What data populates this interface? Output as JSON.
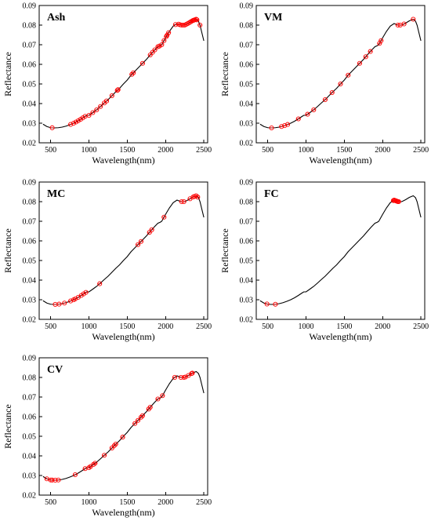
{
  "colors": {
    "curve": "#000000",
    "marker": "#ff0000",
    "marker_fc": "#ff0000"
  },
  "chart_data": [
    {
      "type": "line",
      "panel_label": "Ash",
      "xlabel": "Wavelength(nm)",
      "ylabel": "Reflectance",
      "xlim": [
        350,
        2550
      ],
      "ylim": [
        0.02,
        0.09
      ],
      "xticks": [
        500,
        1000,
        1500,
        2000,
        2500
      ],
      "yticks": [
        0.02,
        0.03,
        0.04,
        0.05,
        0.06,
        0.07,
        0.08,
        0.09
      ],
      "grid": false,
      "curve": {
        "x": [
          400,
          450,
          500,
          550,
          600,
          650,
          700,
          750,
          800,
          850,
          900,
          950,
          970,
          1000,
          1050,
          1100,
          1150,
          1200,
          1250,
          1300,
          1350,
          1400,
          1450,
          1500,
          1550,
          1600,
          1650,
          1700,
          1750,
          1800,
          1850,
          1900,
          1930,
          1950,
          2000,
          2050,
          2100,
          2150,
          2200,
          2250,
          2300,
          2350,
          2400,
          2430,
          2450,
          2500
        ],
        "y": [
          0.0295,
          0.0283,
          0.0277,
          0.0276,
          0.0277,
          0.028,
          0.0285,
          0.0292,
          0.03,
          0.031,
          0.0322,
          0.0335,
          0.034,
          0.034,
          0.0354,
          0.0368,
          0.0385,
          0.0403,
          0.042,
          0.044,
          0.046,
          0.0478,
          0.05,
          0.052,
          0.0545,
          0.0565,
          0.0585,
          0.0605,
          0.0625,
          0.0648,
          0.067,
          0.069,
          0.0695,
          0.07,
          0.0735,
          0.0768,
          0.0795,
          0.0808,
          0.08,
          0.08,
          0.081,
          0.0822,
          0.083,
          0.082,
          0.08,
          0.072
        ]
      },
      "selected_wavelengths": [
        520,
        760,
        800,
        830,
        860,
        890,
        920,
        950,
        1000,
        1050,
        1100,
        1150,
        1200,
        1230,
        1300,
        1370,
        1380,
        1560,
        1580,
        1700,
        1800,
        1830,
        1860,
        1900,
        1920,
        1950,
        1980,
        2010,
        2020,
        2040,
        2130,
        2170,
        2190,
        2210,
        2230,
        2250,
        2270,
        2290,
        2310,
        2330,
        2350,
        2360,
        2370,
        2380,
        2400,
        2410,
        2450
      ]
    },
    {
      "type": "line",
      "panel_label": "VM",
      "xlabel": "Wavelength(nm)",
      "ylabel": "Reflectance",
      "xlim": [
        350,
        2550
      ],
      "ylim": [
        0.02,
        0.09
      ],
      "xticks": [
        500,
        1000,
        1500,
        2000,
        2500
      ],
      "yticks": [
        0.02,
        0.03,
        0.04,
        0.05,
        0.06,
        0.07,
        0.08,
        0.09
      ],
      "grid": false,
      "curve": {
        "x": [
          400,
          450,
          500,
          550,
          600,
          650,
          700,
          750,
          800,
          850,
          900,
          950,
          970,
          1000,
          1050,
          1100,
          1150,
          1200,
          1250,
          1300,
          1350,
          1400,
          1450,
          1500,
          1550,
          1600,
          1650,
          1700,
          1750,
          1800,
          1850,
          1900,
          1930,
          1950,
          2000,
          2050,
          2100,
          2150,
          2200,
          2250,
          2300,
          2350,
          2400,
          2430,
          2450,
          2500
        ],
        "y": [
          0.0295,
          0.0283,
          0.0277,
          0.0276,
          0.0277,
          0.028,
          0.0285,
          0.0292,
          0.03,
          0.031,
          0.0322,
          0.0335,
          0.034,
          0.034,
          0.0354,
          0.0368,
          0.0385,
          0.0403,
          0.042,
          0.044,
          0.046,
          0.0478,
          0.05,
          0.052,
          0.0545,
          0.0565,
          0.0585,
          0.0605,
          0.0625,
          0.0648,
          0.067,
          0.069,
          0.0695,
          0.07,
          0.0735,
          0.0768,
          0.0795,
          0.0808,
          0.08,
          0.08,
          0.081,
          0.0822,
          0.083,
          0.082,
          0.08,
          0.072
        ]
      },
      "selected_wavelengths": [
        550,
        680,
        720,
        760,
        900,
        1020,
        1100,
        1250,
        1340,
        1450,
        1550,
        1700,
        1780,
        1840,
        1960,
        1980,
        2200,
        2230,
        2280,
        2400
      ]
    },
    {
      "type": "line",
      "panel_label": "MC",
      "xlabel": "Wavelength(nm)",
      "ylabel": "Reflectance",
      "xlim": [
        350,
        2550
      ],
      "ylim": [
        0.02,
        0.09
      ],
      "xticks": [
        500,
        1000,
        1500,
        2000,
        2500
      ],
      "yticks": [
        0.02,
        0.03,
        0.04,
        0.05,
        0.06,
        0.07,
        0.08,
        0.09
      ],
      "grid": false,
      "curve": {
        "x": [
          400,
          450,
          500,
          550,
          600,
          650,
          700,
          750,
          800,
          850,
          900,
          950,
          970,
          1000,
          1050,
          1100,
          1150,
          1200,
          1250,
          1300,
          1350,
          1400,
          1450,
          1500,
          1550,
          1600,
          1650,
          1700,
          1750,
          1800,
          1850,
          1900,
          1930,
          1950,
          2000,
          2050,
          2100,
          2150,
          2200,
          2250,
          2300,
          2350,
          2400,
          2430,
          2450,
          2500
        ],
        "y": [
          0.0295,
          0.0283,
          0.0277,
          0.0276,
          0.0277,
          0.028,
          0.0285,
          0.0292,
          0.03,
          0.031,
          0.0322,
          0.0335,
          0.034,
          0.034,
          0.0354,
          0.0368,
          0.0385,
          0.0403,
          0.042,
          0.044,
          0.046,
          0.0478,
          0.05,
          0.052,
          0.0545,
          0.0565,
          0.0585,
          0.0605,
          0.0625,
          0.0648,
          0.067,
          0.069,
          0.0695,
          0.07,
          0.0735,
          0.0768,
          0.0795,
          0.0808,
          0.08,
          0.08,
          0.081,
          0.0822,
          0.083,
          0.082,
          0.08,
          0.072
        ]
      },
      "selected_wavelengths": [
        560,
        610,
        680,
        760,
        800,
        820,
        860,
        900,
        930,
        960,
        1140,
        1640,
        1680,
        1790,
        1820,
        1980,
        2210,
        2240,
        2320,
        2360,
        2380,
        2400,
        2420
      ]
    },
    {
      "type": "line",
      "panel_label": "FC",
      "xlabel": "Wavelength(nm)",
      "ylabel": "Reflectance",
      "xlim": [
        350,
        2550
      ],
      "ylim": [
        0.02,
        0.09
      ],
      "xticks": [
        500,
        1000,
        1500,
        2000,
        2500
      ],
      "yticks": [
        0.02,
        0.03,
        0.04,
        0.05,
        0.06,
        0.07,
        0.08,
        0.09
      ],
      "grid": false,
      "curve": {
        "x": [
          400,
          450,
          500,
          550,
          600,
          650,
          700,
          750,
          800,
          850,
          900,
          950,
          970,
          1000,
          1050,
          1100,
          1150,
          1200,
          1250,
          1300,
          1350,
          1400,
          1450,
          1500,
          1550,
          1600,
          1650,
          1700,
          1750,
          1800,
          1850,
          1900,
          1930,
          1950,
          2000,
          2050,
          2100,
          2150,
          2200,
          2250,
          2300,
          2350,
          2400,
          2430,
          2450,
          2500
        ],
        "y": [
          0.0295,
          0.0283,
          0.0277,
          0.0276,
          0.0277,
          0.028,
          0.0285,
          0.0292,
          0.03,
          0.031,
          0.0322,
          0.0335,
          0.034,
          0.034,
          0.0354,
          0.0368,
          0.0385,
          0.0403,
          0.042,
          0.044,
          0.046,
          0.0478,
          0.05,
          0.052,
          0.0545,
          0.0565,
          0.0585,
          0.0605,
          0.0625,
          0.0648,
          0.067,
          0.069,
          0.0695,
          0.07,
          0.0735,
          0.0768,
          0.0795,
          0.0808,
          0.08,
          0.08,
          0.081,
          0.0822,
          0.083,
          0.082,
          0.08,
          0.072
        ]
      },
      "selected_wavelengths": [
        490,
        600,
        2140,
        2150,
        2160,
        2170,
        2180,
        2190,
        2200,
        2210
      ]
    },
    {
      "type": "line",
      "panel_label": "CV",
      "xlabel": "Wavelength(nm)",
      "ylabel": "Reflectance",
      "xlim": [
        350,
        2550
      ],
      "ylim": [
        0.02,
        0.09
      ],
      "xticks": [
        500,
        1000,
        1500,
        2000,
        2500
      ],
      "yticks": [
        0.02,
        0.03,
        0.04,
        0.05,
        0.06,
        0.07,
        0.08,
        0.09
      ],
      "grid": false,
      "curve": {
        "x": [
          400,
          450,
          500,
          550,
          600,
          650,
          700,
          750,
          800,
          850,
          900,
          950,
          970,
          1000,
          1050,
          1100,
          1150,
          1200,
          1250,
          1300,
          1350,
          1400,
          1450,
          1500,
          1550,
          1600,
          1650,
          1700,
          1750,
          1800,
          1850,
          1900,
          1930,
          1950,
          2000,
          2050,
          2100,
          2150,
          2200,
          2250,
          2300,
          2350,
          2400,
          2430,
          2450,
          2500
        ],
        "y": [
          0.0295,
          0.0283,
          0.0277,
          0.0276,
          0.0277,
          0.028,
          0.0285,
          0.0292,
          0.03,
          0.031,
          0.0322,
          0.0335,
          0.034,
          0.034,
          0.0354,
          0.0368,
          0.0385,
          0.0403,
          0.042,
          0.044,
          0.046,
          0.0478,
          0.05,
          0.052,
          0.0545,
          0.0565,
          0.0585,
          0.0605,
          0.0625,
          0.0648,
          0.067,
          0.069,
          0.0695,
          0.07,
          0.0735,
          0.0768,
          0.0795,
          0.0808,
          0.08,
          0.08,
          0.081,
          0.0822,
          0.083,
          0.082,
          0.08,
          0.072
        ]
      },
      "selected_wavelengths": [
        450,
        500,
        520,
        560,
        600,
        820,
        950,
        1000,
        1020,
        1060,
        1080,
        1200,
        1300,
        1330,
        1350,
        1440,
        1600,
        1640,
        1680,
        1700,
        1780,
        1800,
        1900,
        1960,
        2120,
        2200,
        2240,
        2260,
        2300,
        2340,
        2350
      ]
    }
  ]
}
